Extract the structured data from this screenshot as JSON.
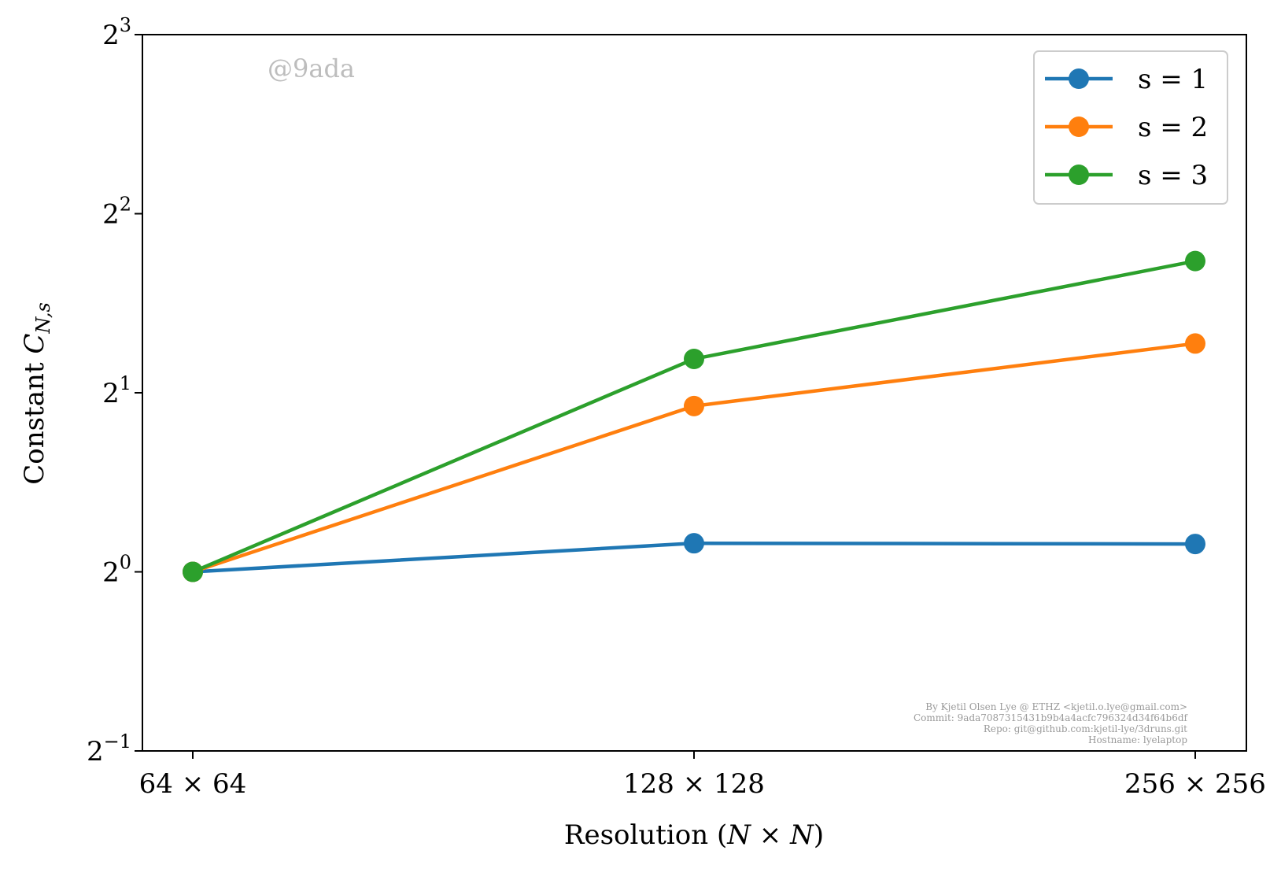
{
  "chart_data": {
    "type": "line",
    "categories": [
      "64 × 64",
      "128 × 128",
      "256 × 256"
    ],
    "xlabel": "Resolution (N × N)",
    "ylabel": "Constant C_{N,s}",
    "yscale": "log2",
    "ylim": [
      0.5,
      8
    ],
    "yticks": [
      {
        "base": "2",
        "exp": "−1",
        "value": 0.5
      },
      {
        "base": "2",
        "exp": "0",
        "value": 1
      },
      {
        "base": "2",
        "exp": "1",
        "value": 2
      },
      {
        "base": "2",
        "exp": "2",
        "value": 4
      },
      {
        "base": "2",
        "exp": "3",
        "value": 8
      }
    ],
    "grid": false,
    "legend": "top-right",
    "series": [
      {
        "name": "s = 1",
        "color": "#1f77b4",
        "values": [
          1.0,
          1.117,
          1.114
        ]
      },
      {
        "name": "s = 2",
        "color": "#ff7f0e",
        "values": [
          1.0,
          1.9,
          2.42
        ]
      },
      {
        "name": "s = 3",
        "color": "#2ca02c",
        "values": [
          1.0,
          2.28,
          3.33
        ]
      }
    ],
    "watermark": "@9ada",
    "credits": [
      "By Kjetil Olsen Lye @ ETHZ <kjetil.o.lye@gmail.com>",
      "Commit: 9ada7087315431b9b4a4acfc796324d34f64b6df",
      "Repo: git@github.com:kjetil-lye/3druns.git",
      "Hostname: lyelaptop"
    ]
  }
}
